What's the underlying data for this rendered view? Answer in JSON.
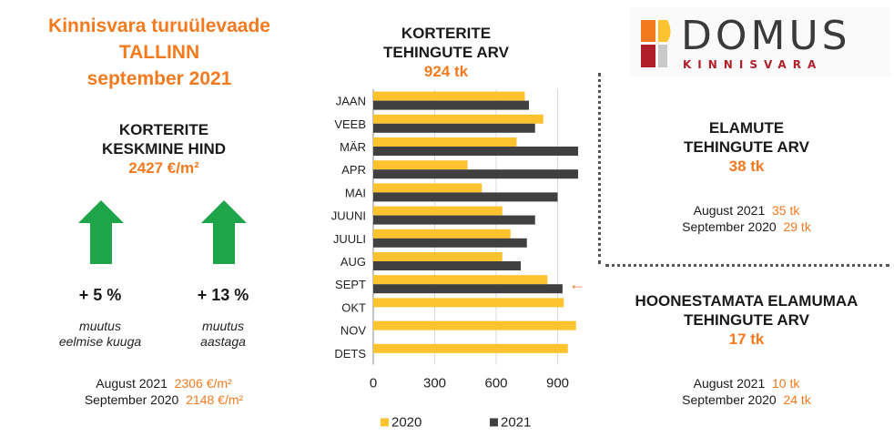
{
  "header": {
    "line1": "Kinnisvara turuülevaade",
    "line2": "TALLINN",
    "line3": "september 2021"
  },
  "price": {
    "title1": "KORTERITE",
    "title2": "KESKMINE HIND",
    "value": "2427 €/m²",
    "change_month": "+ 5 %",
    "change_month_note1": "muutus",
    "change_month_note2": "eelmise kuuga",
    "change_year": "+ 13 %",
    "change_year_note1": "muutus",
    "change_year_note2": "aastaga",
    "cmp": [
      {
        "label": "August 2021",
        "value": "2306 €/m²"
      },
      {
        "label": "September 2020",
        "value": "2148 €/m²"
      }
    ]
  },
  "logo": {
    "word": "DOMUS",
    "sub": "KINNISVARA"
  },
  "houses": {
    "title1": "ELAMUTE",
    "title2": "TEHINGUTE ARV",
    "value": "38 tk",
    "cmp": [
      {
        "label": "August 2021",
        "value": "35 tk"
      },
      {
        "label": "September 2020",
        "value": "29 tk"
      }
    ]
  },
  "land": {
    "title1": "HOONESTAMATA ELAMUMAA",
    "title2": "TEHINGUTE ARV",
    "value": "17 tk",
    "cmp": [
      {
        "label": "August 2021",
        "value": "10 tk"
      },
      {
        "label": "September 2020",
        "value": "24 tk"
      }
    ]
  },
  "colors": {
    "accent": "#f47a20",
    "up_arrow": "#1ea54a",
    "series_2020": "#fdc32e",
    "series_2021": "#404040"
  },
  "chart_data": {
    "type": "bar",
    "orientation": "horizontal",
    "title": "KORTERITE TEHINGUTE ARV",
    "subtitle": "924 tk",
    "categories": [
      "JAAN",
      "VEEB",
      "MÄR",
      "APR",
      "MAI",
      "JUUNI",
      "JUULI",
      "AUG",
      "SEPT",
      "OKT",
      "NOV",
      "DETS"
    ],
    "series": [
      {
        "name": "2020",
        "color": "#fdc32e",
        "values": [
          740,
          830,
          700,
          460,
          530,
          630,
          670,
          630,
          850,
          930,
          990,
          950
        ]
      },
      {
        "name": "2021",
        "color": "#404040",
        "values": [
          760,
          790,
          1000,
          1000,
          900,
          790,
          750,
          720,
          924,
          null,
          null,
          null
        ]
      }
    ],
    "xlim": [
      0,
      1000
    ],
    "xticks": [
      0,
      300,
      600,
      900
    ],
    "highlight_category": "SEPT",
    "highlight_marker": "←",
    "legend_position": "bottom",
    "grid": true
  }
}
